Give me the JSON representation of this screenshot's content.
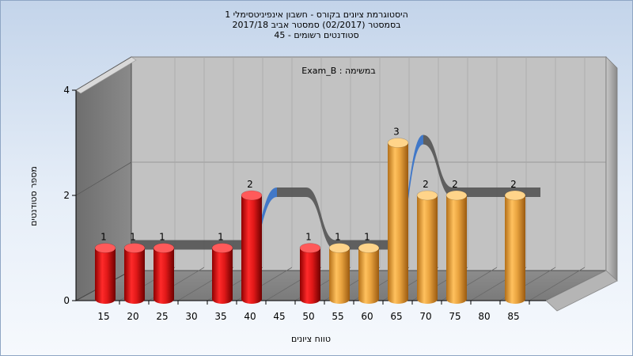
{
  "chart_data": {
    "type": "bar",
    "title_lines": [
      "היסטוגרמת ציונים בקורס - חשבון אינפיניטסימלי 1",
      "בסמסטר  (02/2017)  סמסטר אביב 2017/18",
      "סטודנטים רשומים - 45"
    ],
    "subtitle": "במשימה : Exam_B",
    "xlabel": "טווח ציונים",
    "ylabel": "מספר סטודנטים",
    "x_ticks": [
      "15",
      "20",
      "25",
      "30",
      "35",
      "40",
      "45",
      "50",
      "55",
      "60",
      "65",
      "70",
      "75",
      "80",
      "85"
    ],
    "y_ticks": [
      "0",
      "2",
      "4"
    ],
    "ylim": [
      0,
      4
    ],
    "grid": true,
    "colors": {
      "red": "#e01818",
      "orange": "#e8a23e",
      "curve_front": "#3a74c8",
      "curve_back": "#5a5a5a"
    },
    "bars": [
      {
        "x": 15,
        "value": 1,
        "color": "red"
      },
      {
        "x": 20,
        "value": 1,
        "color": "red"
      },
      {
        "x": 25,
        "value": 1,
        "color": "red"
      },
      {
        "x": 35,
        "value": 1,
        "color": "red"
      },
      {
        "x": 40,
        "value": 2,
        "color": "red"
      },
      {
        "x": 50,
        "value": 1,
        "color": "red"
      },
      {
        "x": 55,
        "value": 1,
        "color": "orange"
      },
      {
        "x": 60,
        "value": 1,
        "color": "orange"
      },
      {
        "x": 65,
        "value": 3,
        "color": "orange"
      },
      {
        "x": 70,
        "value": 2,
        "color": "orange"
      },
      {
        "x": 75,
        "value": 2,
        "color": "orange"
      },
      {
        "x": 85,
        "value": 2,
        "color": "orange"
      }
    ]
  }
}
